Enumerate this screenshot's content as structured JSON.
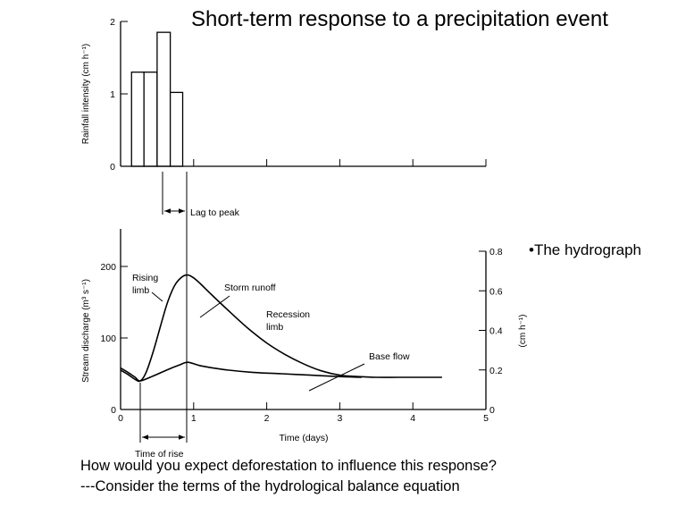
{
  "slide": {
    "title": "Short-term response to a precipitation event",
    "bullet": "•The hydrograph",
    "question": "How would you expect deforestation to influence this response?",
    "consider": "---Consider the terms of the hydrological balance equation"
  },
  "chart_data": [
    {
      "type": "bar",
      "ylabel": "Rainfall intensity (cm h⁻¹)",
      "yticks": [
        "0",
        "1",
        "2"
      ],
      "ylim": [
        0,
        2
      ],
      "x_unit": "days",
      "bars": [
        {
          "x0": 0.15,
          "x1": 0.32,
          "value": 1.3
        },
        {
          "x0": 0.32,
          "x1": 0.5,
          "value": 1.3
        },
        {
          "x0": 0.5,
          "x1": 0.68,
          "value": 1.85
        },
        {
          "x0": 0.68,
          "x1": 0.85,
          "value": 1.02
        }
      ]
    },
    {
      "type": "line",
      "xlabel": "Time (days)",
      "ylabel": "Stream discharge (m³ s⁻¹)",
      "y2label": "(cm h⁻¹)",
      "xticks": [
        "0",
        "1",
        "2",
        "3",
        "4",
        "5"
      ],
      "yticks": [
        "0",
        "100",
        "200"
      ],
      "y2ticks": [
        "0",
        "0.2",
        "0.4",
        "0.6",
        "0.8"
      ],
      "xlim": [
        0,
        5
      ],
      "ylim": [
        0,
        250
      ],
      "series": [
        {
          "label": "storm hydrograph",
          "x": [
            0,
            0.1,
            0.2,
            0.27,
            0.35,
            0.45,
            0.55,
            0.65,
            0.75,
            0.85,
            0.92,
            1.0,
            1.1,
            1.25,
            1.5,
            1.75,
            2.0,
            2.25,
            2.5,
            2.75,
            3.0,
            3.25,
            3.5,
            3.8,
            4.1,
            4.4
          ],
          "y": [
            55,
            49,
            42,
            40,
            52,
            82,
            118,
            152,
            175,
            186,
            188,
            184,
            175,
            160,
            136,
            113,
            93,
            77,
            64,
            54,
            48,
            46,
            45,
            45,
            45,
            45
          ]
        },
        {
          "label": "base flow",
          "x": [
            0,
            0.1,
            0.2,
            0.27,
            0.45,
            0.65,
            0.8,
            0.92,
            1.1,
            1.4,
            1.8,
            2.2,
            2.6,
            3.0,
            3.3
          ],
          "y": [
            58,
            52,
            45,
            40,
            47,
            56,
            62,
            66,
            61,
            56,
            52,
            50,
            48,
            46,
            45
          ]
        }
      ],
      "annotations": {
        "lag_to_peak": "Lag to peak",
        "rising_limb": [
          "Rising",
          "limb"
        ],
        "storm_runoff": "Storm runoff",
        "recession_limb": [
          "Recession",
          "limb"
        ],
        "base_flow": "Base flow",
        "time_of_rise": "Time of rise"
      }
    }
  ]
}
